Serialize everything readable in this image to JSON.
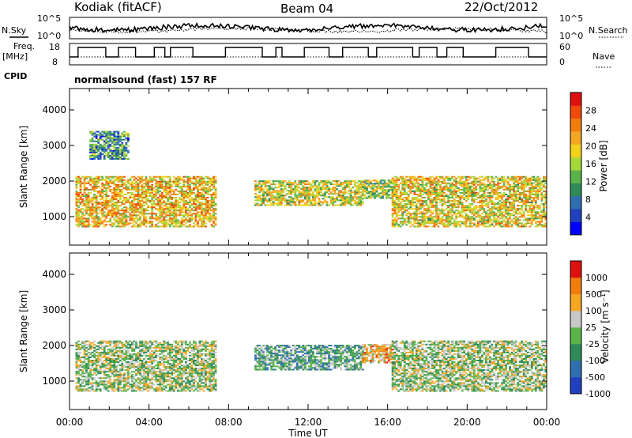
{
  "header": {
    "station": "Kodiak (fitACF)",
    "beam": "Beam 04",
    "date": "22/Oct/2012",
    "cpid_label": "CPID",
    "cpid_value": "normalsound (fast) 157 RF"
  },
  "side_labels": {
    "nsky": "N.Sky",
    "nsearch": "N.Search",
    "freq_line1": "Freq.",
    "freq_line2": "[MHz]",
    "nave": "Nave"
  },
  "mini_axes": {
    "noise_left_ticks": [
      "10^5",
      "10^0"
    ],
    "noise_right_ticks": [
      "10^5",
      "10^0"
    ],
    "freq_left_ticks": [
      "18",
      "8"
    ],
    "nave_right_ticks": [
      "60",
      "0"
    ]
  },
  "chart_data": [
    {
      "type": "heatmap",
      "name": "Power",
      "ylabel": "Slant Range [km]",
      "xlabel": "Time UT",
      "yticks": [
        "4000",
        "3000",
        "2000",
        "1000"
      ],
      "ylim": [
        200,
        4600
      ],
      "colorbar_label": "Power [dB]",
      "colorbar_ticks": [
        "28",
        "24",
        "20",
        "16",
        "12",
        "8",
        "4"
      ],
      "colors": [
        "#0000ff",
        "#2040c0",
        "#2f6fb0",
        "#2e8b57",
        "#5ab44a",
        "#a6d83a",
        "#f2d21a",
        "#f5a623",
        "#f27d0c",
        "#ef4a0a",
        "#e01010"
      ],
      "echo_regions": [
        {
          "t0": 0.3,
          "t1": 7.3,
          "r0": 700,
          "r1": 2100,
          "level": 0.65
        },
        {
          "t0": 1.0,
          "t1": 3.0,
          "r0": 2600,
          "r1": 3400,
          "level": 0.3
        },
        {
          "t0": 9.3,
          "t1": 14.7,
          "r0": 1300,
          "r1": 2000,
          "level": 0.55
        },
        {
          "t0": 14.7,
          "t1": 16.2,
          "r0": 1500,
          "r1": 2000,
          "level": 0.5
        },
        {
          "t0": 16.2,
          "t1": 24.0,
          "r0": 700,
          "r1": 2100,
          "level": 0.6
        }
      ]
    },
    {
      "type": "heatmap",
      "name": "Velocity",
      "ylabel": "Slant Range [km]",
      "xlabel": "Time UT",
      "yticks": [
        "4000",
        "3000",
        "2000",
        "1000"
      ],
      "ylim": [
        200,
        4600
      ],
      "colorbar_label": "Velocity [m s⁻¹]",
      "colorbar_ticks": [
        "1000",
        "500",
        "100",
        "25",
        "-25",
        "-100",
        "-500",
        "-1000"
      ],
      "colors": [
        "#2040c0",
        "#2f6fb0",
        "#2e8b57",
        "#5ab44a",
        "#c8c8c8",
        "#f5a623",
        "#f27d0c",
        "#e01010"
      ],
      "echo_regions": [
        {
          "t0": 0.3,
          "t1": 7.3,
          "r0": 700,
          "r1": 2100,
          "level": 0.5
        },
        {
          "t0": 9.3,
          "t1": 14.7,
          "r0": 1300,
          "r1": 2000,
          "level": 0.35
        },
        {
          "t0": 14.7,
          "t1": 16.2,
          "r0": 1500,
          "r1": 2000,
          "level": 0.7
        },
        {
          "t0": 16.2,
          "t1": 24.0,
          "r0": 700,
          "r1": 2100,
          "level": 0.5
        }
      ]
    }
  ],
  "xaxis": {
    "label": "Time UT",
    "ticks": [
      "00:00",
      "04:00",
      "08:00",
      "12:00",
      "16:00",
      "20:00",
      "00:00"
    ],
    "range_hours": [
      0,
      24
    ]
  }
}
